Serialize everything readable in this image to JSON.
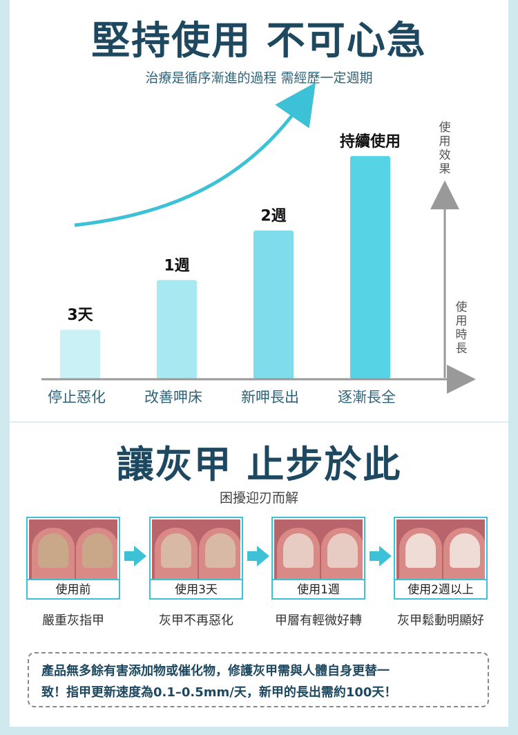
{
  "header": {
    "title": "堅持使用 不可心急",
    "subtitle": "治療是循序漸進的過程 需經歷一定週期"
  },
  "chart_data": {
    "type": "bar",
    "categories": [
      "停止惡化",
      "改善呷床",
      "新呷長出",
      "逐漸長全"
    ],
    "values": [
      1,
      2,
      3,
      4.5
    ],
    "data_labels": [
      "3天",
      "1週",
      "2週",
      "持續使用"
    ],
    "ylabel": "使用效果",
    "xlabel": "使用時長",
    "ylim": [
      0,
      5
    ],
    "grid": false,
    "legend": "none",
    "colors": [
      "#caf1f6",
      "#a8e8f1",
      "#7fdcea",
      "#56d4e6"
    ],
    "trend_color": "#3cc1d7"
  },
  "section2": {
    "title": "讓灰甲 止步於此",
    "subtitle": "困擾迎刃而解"
  },
  "stages": [
    {
      "caption": "使用前",
      "description": "嚴重灰指甲",
      "nail_color": "#c9a88a"
    },
    {
      "caption": "使用3天",
      "description": "灰甲不再惡化",
      "nail_color": "#d7b9a6"
    },
    {
      "caption": "使用1週",
      "description": "甲層有輕微好轉",
      "nail_color": "#e6ccc2"
    },
    {
      "caption": "使用2週以上",
      "description": "灰甲鬆動明顯好",
      "nail_color": "#efdcd6"
    }
  ],
  "notice": {
    "line1": "產品無多餘有害添加物或催化物，修護灰甲需與人體自身更替一",
    "line2": "致！指甲更新速度為0.1–0.5mm/天，新甲的長出需約100天！"
  }
}
